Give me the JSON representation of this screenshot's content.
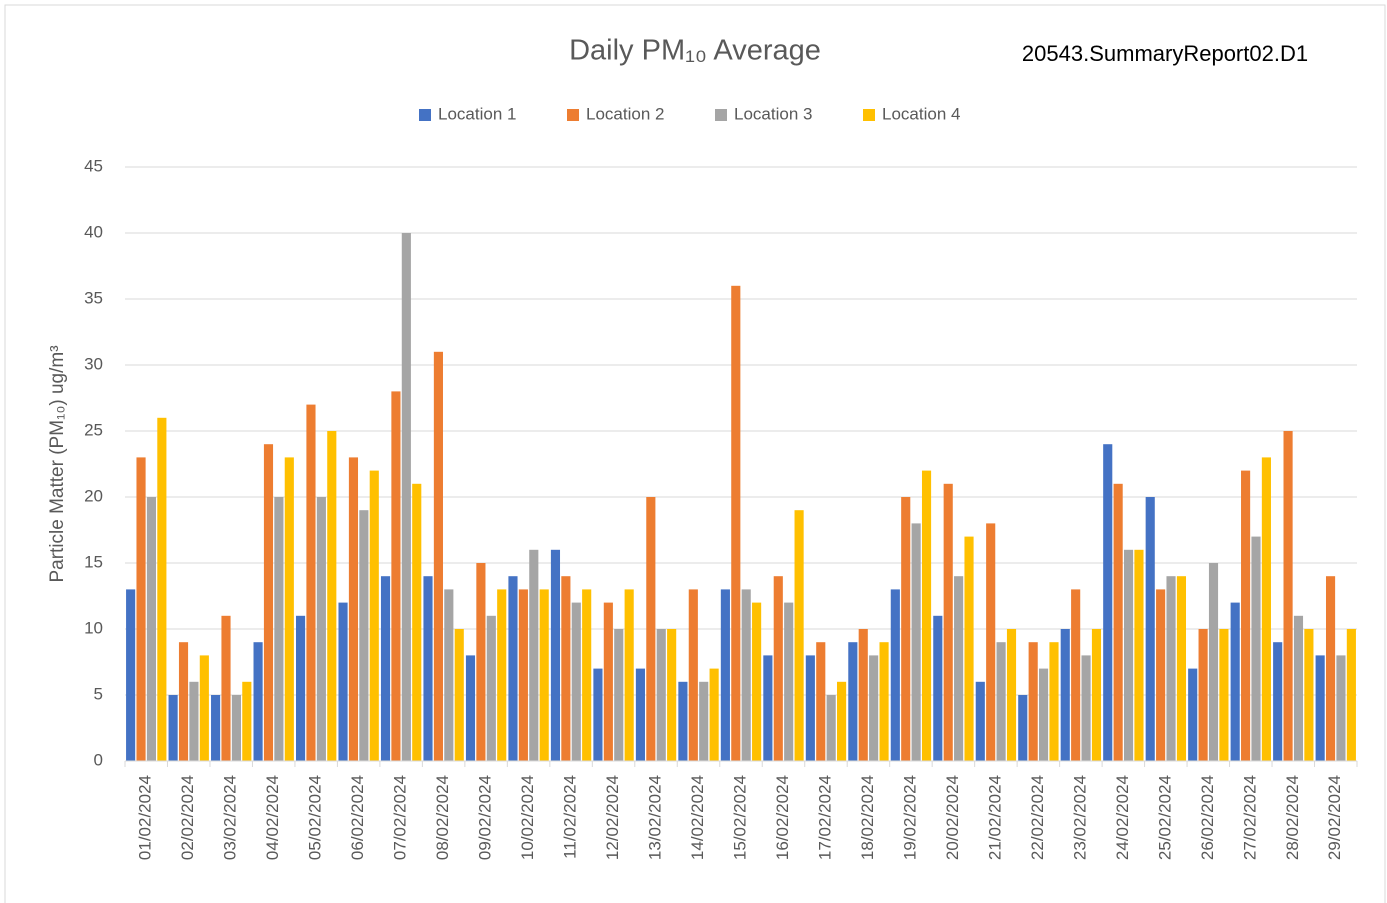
{
  "chart_data": {
    "type": "bar",
    "title": "Daily PM₁₀ Average",
    "annotation": "20543.SummaryReport02.D1",
    "y_label": "Particle Matter (PM₁₀) ug/m³",
    "categories": [
      "01/02/2024",
      "02/02/2024",
      "03/02/2024",
      "04/02/2024",
      "05/02/2024",
      "06/02/2024",
      "07/02/2024",
      "08/02/2024",
      "09/02/2024",
      "10/02/2024",
      "11/02/2024",
      "12/02/2024",
      "13/02/2024",
      "14/02/2024",
      "15/02/2024",
      "16/02/2024",
      "17/02/2024",
      "18/02/2024",
      "19/02/2024",
      "20/02/2024",
      "21/02/2024",
      "22/02/2024",
      "23/02/2024",
      "24/02/2024",
      "25/02/2024",
      "26/02/2024",
      "27/02/2024",
      "28/02/2024",
      "29/02/2024"
    ],
    "series": [
      {
        "name": "Location 1",
        "color": "#4472c4",
        "values": [
          13,
          5,
          5,
          9,
          11,
          12,
          14,
          14,
          8,
          14,
          16,
          7,
          7,
          6,
          13,
          8,
          8,
          9,
          13,
          11,
          6,
          5,
          10,
          24,
          20,
          7,
          12,
          9,
          8
        ]
      },
      {
        "name": "Location 2",
        "color": "#ed7d31",
        "values": [
          23,
          9,
          11,
          24,
          27,
          23,
          28,
          31,
          15,
          13,
          14,
          12,
          20,
          13,
          36,
          14,
          9,
          10,
          20,
          21,
          18,
          9,
          13,
          21,
          13,
          10,
          22,
          25,
          14
        ]
      },
      {
        "name": "Location 3",
        "color": "#a5a5a5",
        "values": [
          20,
          6,
          5,
          20,
          20,
          19,
          40,
          13,
          11,
          16,
          12,
          10,
          10,
          6,
          13,
          12,
          5,
          8,
          18,
          14,
          9,
          7,
          8,
          16,
          14,
          15,
          17,
          11,
          8
        ]
      },
      {
        "name": "Location 4",
        "color": "#ffc000",
        "values": [
          26,
          8,
          6,
          23,
          25,
          22,
          21,
          10,
          13,
          13,
          13,
          13,
          10,
          7,
          12,
          19,
          6,
          9,
          22,
          17,
          10,
          9,
          10,
          16,
          14,
          10,
          23,
          10,
          10
        ]
      }
    ],
    "ylim": [
      0,
      45
    ],
    "yticks": [
      0,
      5,
      10,
      15,
      20,
      25,
      30,
      35,
      40,
      45
    ],
    "grid": true,
    "legend": "top"
  }
}
